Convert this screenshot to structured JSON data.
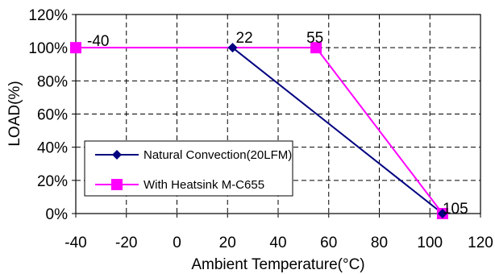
{
  "chart_data": {
    "type": "line",
    "xlabel": "Ambient Temperature(°C)",
    "ylabel": "LOAD(%)",
    "xlim": [
      -40,
      120
    ],
    "ylim": [
      0,
      120
    ],
    "xticks": [
      "-40",
      "-20",
      "0",
      "20",
      "40",
      "60",
      "80",
      "100",
      "120"
    ],
    "yticks": [
      "0%",
      "20%",
      "40%",
      "60%",
      "80%",
      "100%",
      "120%"
    ],
    "grid": true,
    "legend_position": "bottom-left",
    "series": [
      {
        "name": "Natural Convection(20LFM)",
        "color": "#000080",
        "marker": "diamond",
        "x": [
          22,
          105
        ],
        "y": [
          100,
          0
        ]
      },
      {
        "name": "With Heatsink M-C655",
        "color": "#ff00ff",
        "marker": "square",
        "x": [
          -40,
          55,
          105
        ],
        "y": [
          100,
          100,
          0
        ]
      }
    ],
    "annotations": [
      {
        "text": "-40",
        "x": -40,
        "y": 100
      },
      {
        "text": "22",
        "x": 22,
        "y": 100
      },
      {
        "text": "55",
        "x": 55,
        "y": 100
      },
      {
        "text": "105",
        "x": 105,
        "y": 0
      }
    ]
  }
}
